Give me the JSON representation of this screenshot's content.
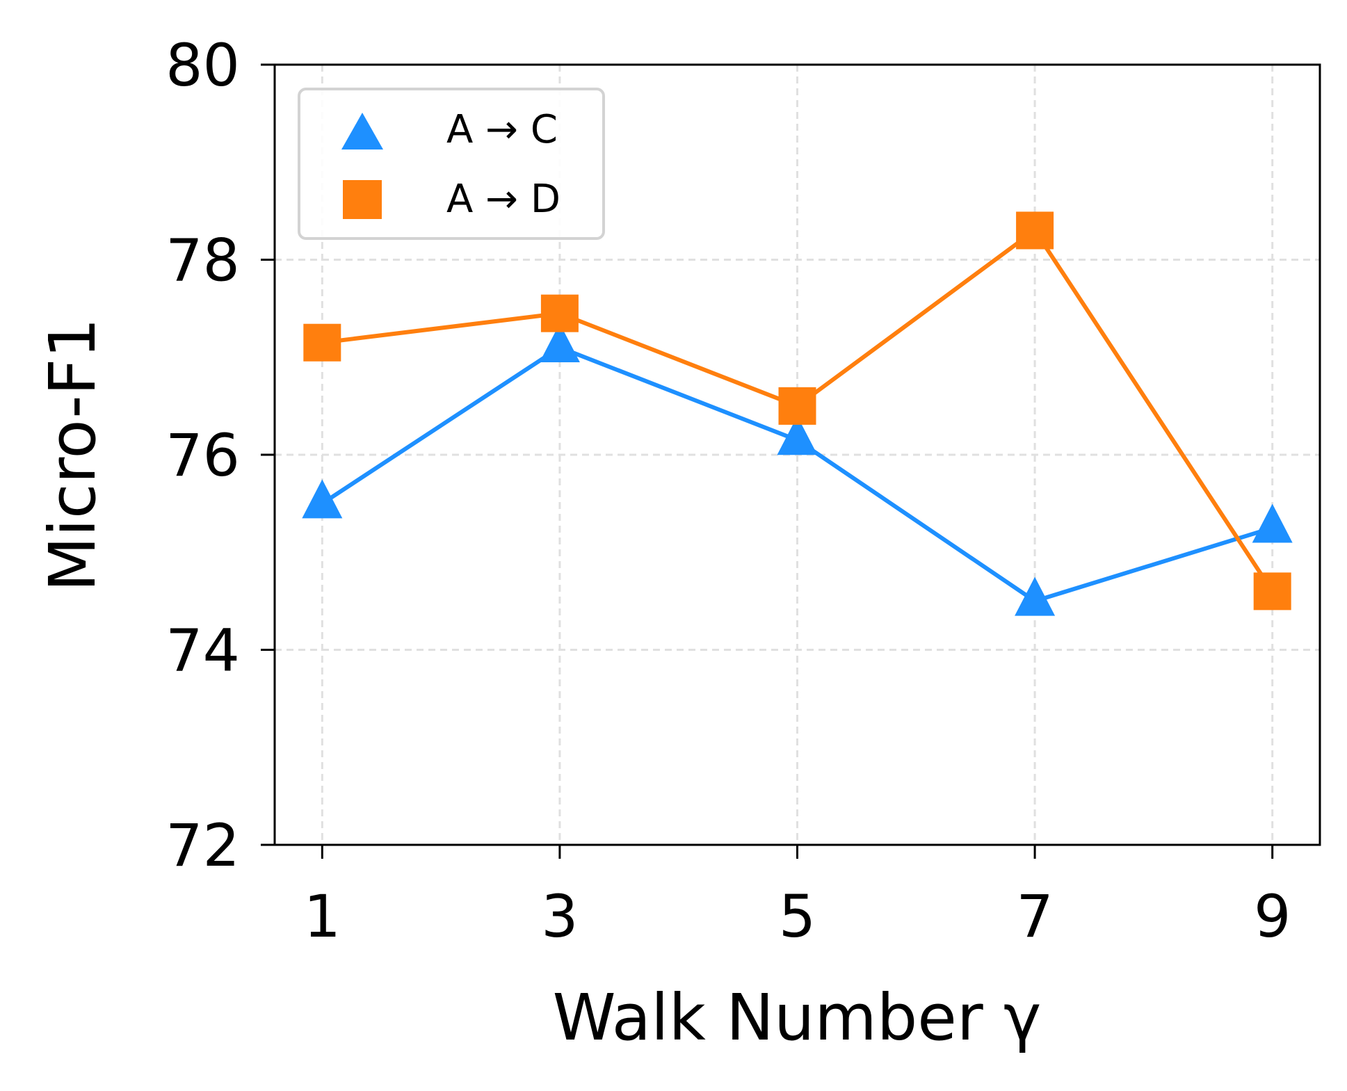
{
  "chart_data": {
    "type": "line",
    "title": "",
    "xlabel": "Walk Number γ",
    "ylabel": "Micro-F1",
    "x": [
      1,
      3,
      5,
      7,
      9
    ],
    "xticks": [
      "1",
      "3",
      "5",
      "7",
      "9"
    ],
    "yticks": [
      "72",
      "74",
      "76",
      "78",
      "80"
    ],
    "ylim": [
      72,
      80
    ],
    "xlim": [
      0.6,
      9.4
    ],
    "grid": true,
    "legend_position": "top-left",
    "series": [
      {
        "name": "A → C",
        "marker": "triangle",
        "color": "#1E90FF",
        "values": [
          75.5,
          77.1,
          76.15,
          74.5,
          75.25
        ]
      },
      {
        "name": "A → D",
        "marker": "square",
        "color": "#FF7F0E",
        "values": [
          77.15,
          77.45,
          76.5,
          78.3,
          74.6
        ]
      }
    ]
  }
}
